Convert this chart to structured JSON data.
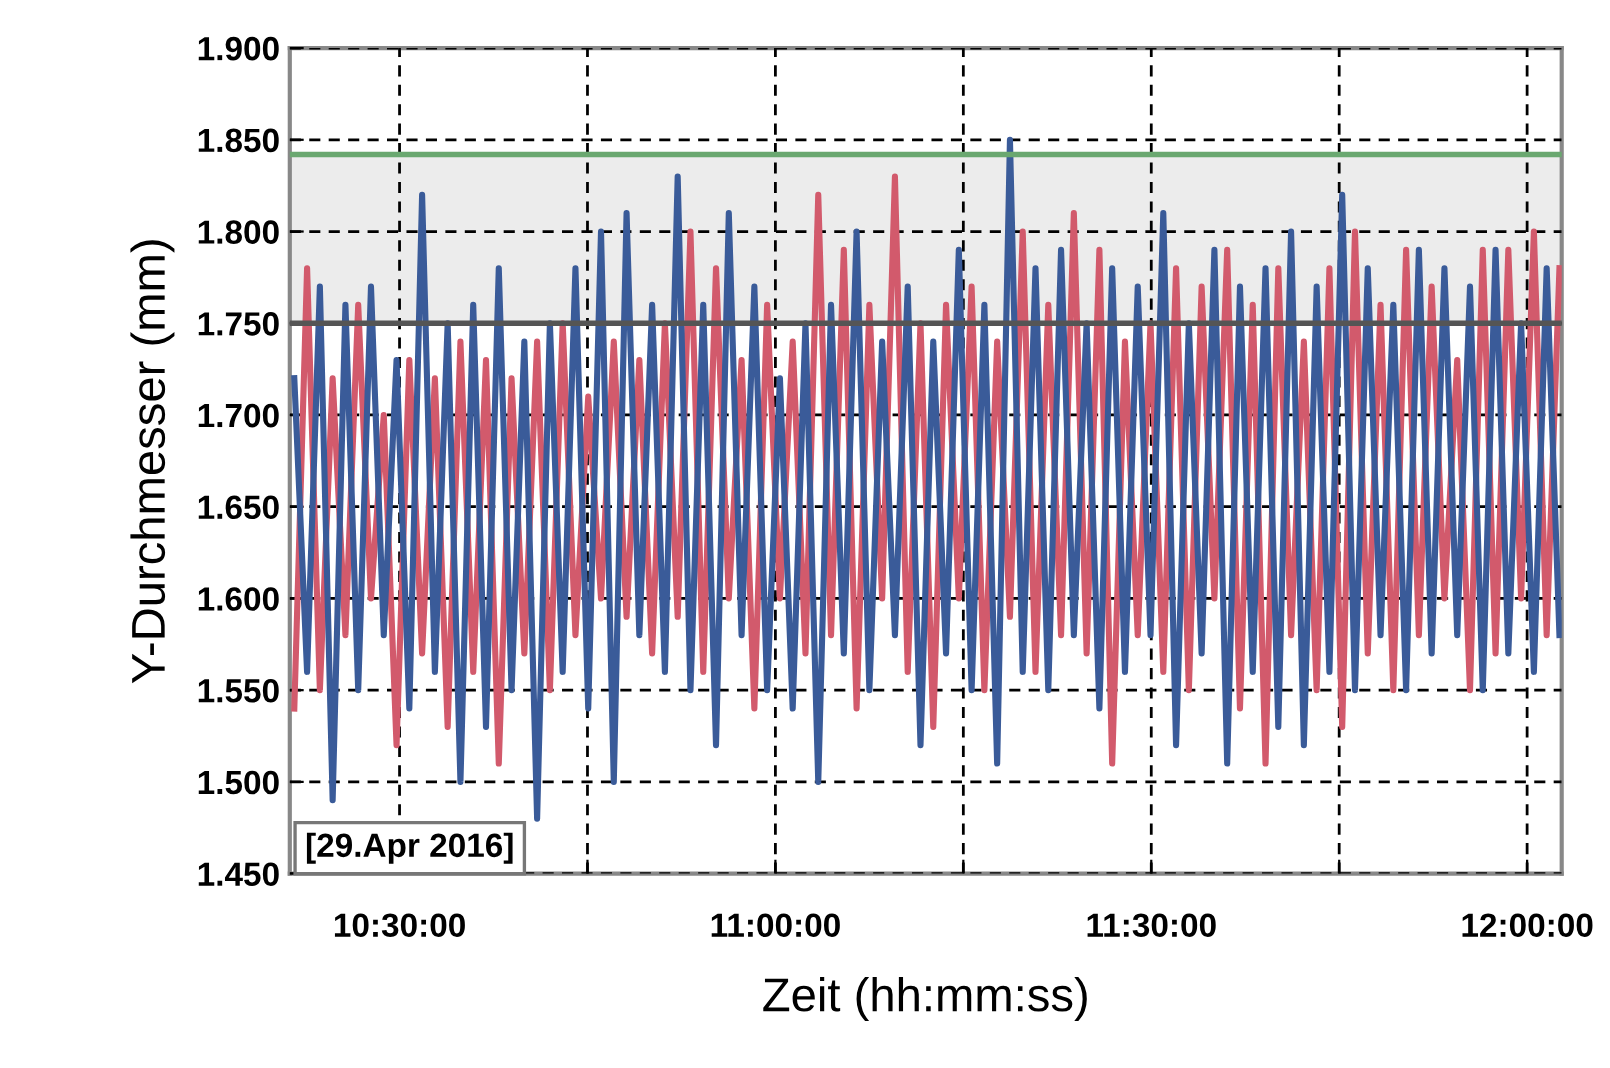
{
  "chart_data": {
    "type": "line",
    "xlabel": "Zeit (hh:mm:ss)",
    "ylabel": "Y-Durchmesser (mm)",
    "x": [
      10.36,
      10.377,
      10.394,
      10.411,
      10.428,
      10.445,
      10.462,
      10.479,
      10.496,
      10.513,
      10.53,
      10.547,
      10.564,
      10.581,
      10.598,
      10.615,
      10.632,
      10.649,
      10.666,
      10.683,
      10.7,
      10.717,
      10.734,
      10.751,
      10.768,
      10.785,
      10.802,
      10.819,
      10.836,
      10.853,
      10.87,
      10.887,
      10.904,
      10.921,
      10.938,
      10.955,
      10.972,
      10.989,
      11.006,
      11.023,
      11.04,
      11.057,
      11.074,
      11.091,
      11.108,
      11.125,
      11.142,
      11.159,
      11.176,
      11.193,
      11.21,
      11.227,
      11.244,
      11.261,
      11.278,
      11.295,
      11.312,
      11.329,
      11.346,
      11.363,
      11.38,
      11.397,
      11.414,
      11.431,
      11.448,
      11.465,
      11.482,
      11.499,
      11.516,
      11.533,
      11.55,
      11.567,
      11.584,
      11.601,
      11.618,
      11.635,
      11.652,
      11.669,
      11.686,
      11.703,
      11.72,
      11.737,
      11.754,
      11.771,
      11.788,
      11.805,
      11.822,
      11.839,
      11.856,
      11.873,
      11.89,
      11.907,
      11.924,
      11.941,
      11.958,
      11.975,
      11.992,
      12.009,
      12.026,
      12.043
    ],
    "series": [
      {
        "color": "#d25a6c",
        "values": [
          1.54,
          1.78,
          1.55,
          1.72,
          1.58,
          1.76,
          1.6,
          1.7,
          1.52,
          1.73,
          1.57,
          1.72,
          1.53,
          1.74,
          1.56,
          1.73,
          1.51,
          1.72,
          1.57,
          1.74,
          1.55,
          1.75,
          1.58,
          1.71,
          1.6,
          1.74,
          1.59,
          1.73,
          1.57,
          1.75,
          1.59,
          1.8,
          1.56,
          1.78,
          1.6,
          1.73,
          1.54,
          1.76,
          1.6,
          1.74,
          1.57,
          1.82,
          1.58,
          1.79,
          1.54,
          1.76,
          1.6,
          1.83,
          1.56,
          1.75,
          1.53,
          1.76,
          1.6,
          1.77,
          1.55,
          1.74,
          1.59,
          1.8,
          1.56,
          1.76,
          1.58,
          1.81,
          1.57,
          1.79,
          1.51,
          1.74,
          1.58,
          1.75,
          1.56,
          1.78,
          1.55,
          1.77,
          1.6,
          1.79,
          1.54,
          1.76,
          1.51,
          1.78,
          1.58,
          1.74,
          1.55,
          1.78,
          1.53,
          1.8,
          1.57,
          1.76,
          1.55,
          1.79,
          1.58,
          1.77,
          1.6,
          1.73,
          1.55,
          1.79,
          1.57,
          1.79,
          1.6,
          1.8,
          1.58,
          1.78
        ]
      },
      {
        "color": "#3a5b99",
        "values": [
          1.72,
          1.56,
          1.77,
          1.49,
          1.76,
          1.55,
          1.77,
          1.58,
          1.73,
          1.54,
          1.82,
          1.56,
          1.75,
          1.5,
          1.76,
          1.53,
          1.78,
          1.55,
          1.74,
          1.48,
          1.75,
          1.56,
          1.78,
          1.54,
          1.8,
          1.5,
          1.81,
          1.58,
          1.76,
          1.56,
          1.83,
          1.55,
          1.76,
          1.52,
          1.81,
          1.58,
          1.77,
          1.55,
          1.72,
          1.54,
          1.75,
          1.5,
          1.76,
          1.57,
          1.8,
          1.55,
          1.74,
          1.58,
          1.77,
          1.52,
          1.74,
          1.57,
          1.79,
          1.55,
          1.76,
          1.51,
          1.85,
          1.56,
          1.78,
          1.55,
          1.79,
          1.58,
          1.75,
          1.54,
          1.78,
          1.56,
          1.77,
          1.58,
          1.81,
          1.52,
          1.75,
          1.57,
          1.79,
          1.51,
          1.77,
          1.56,
          1.78,
          1.53,
          1.8,
          1.52,
          1.77,
          1.56,
          1.82,
          1.55,
          1.78,
          1.58,
          1.76,
          1.55,
          1.79,
          1.57,
          1.78,
          1.58,
          1.77,
          1.55,
          1.79,
          1.57,
          1.75,
          1.56,
          1.78,
          1.58
        ]
      }
    ],
    "xlim": [
      10.354,
      12.046
    ],
    "xticks": [
      {
        "value": 10.5,
        "label": "10:30:00"
      },
      {
        "value": 10.75,
        "label": null
      },
      {
        "value": 11.0,
        "label": "11:00:00"
      },
      {
        "value": 11.25,
        "label": null
      },
      {
        "value": 11.5,
        "label": "11:30:00"
      },
      {
        "value": 11.75,
        "label": null
      },
      {
        "value": 12.0,
        "label": "12:00:00"
      }
    ],
    "ylim": [
      1.45,
      1.9
    ],
    "yticks": [
      {
        "value": 1.45,
        "label": "1.450"
      },
      {
        "value": 1.5,
        "label": "1.500"
      },
      {
        "value": 1.55,
        "label": "1.550"
      },
      {
        "value": 1.6,
        "label": "1.600"
      },
      {
        "value": 1.65,
        "label": "1.650"
      },
      {
        "value": 1.7,
        "label": "1.700"
      },
      {
        "value": 1.75,
        "label": "1.750"
      },
      {
        "value": 1.8,
        "label": "1.800"
      },
      {
        "value": 1.85,
        "label": "1.850"
      },
      {
        "value": 1.9,
        "label": "1.900"
      }
    ],
    "ref_lines": [
      {
        "axis": "y",
        "value": 1.842,
        "color": "#6aa870"
      },
      {
        "axis": "y",
        "value": 1.75,
        "color": "#555555"
      }
    ],
    "bands": [
      {
        "axis": "y",
        "from": 1.75,
        "to": 1.842,
        "color": "#ececec"
      }
    ],
    "grid": true,
    "line_style": "solid",
    "marker": "none",
    "annotations": [
      "[29.Apr 2016]"
    ]
  }
}
